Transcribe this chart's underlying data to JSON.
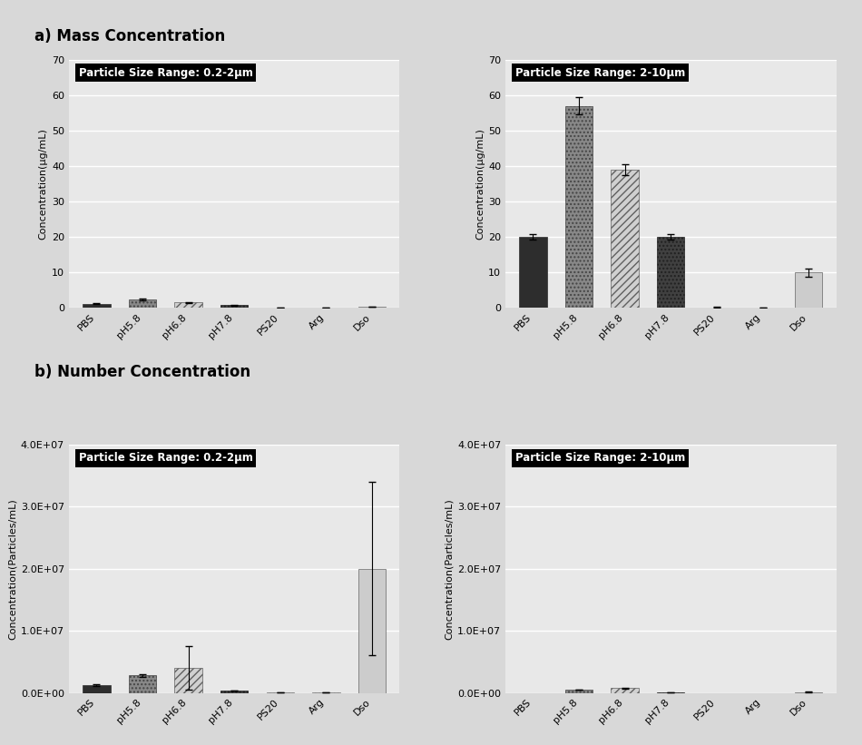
{
  "categories": [
    "PBS",
    "pH5.8",
    "pH6.8",
    "pH7.8",
    "PS20",
    "Arg",
    "Dso"
  ],
  "title_a": "a) Mass Concentration",
  "title_b": "b) Number Concentration",
  "label_a": "Concentration(μg/mL)",
  "label_b": "Concentration(Particles/mL)",
  "panel_labels": [
    "Particle Size Range: 0.2-2μm",
    "Particle Size Range: 2-10μm",
    "Particle Size Range: 0.2-2μm",
    "Particle Size Range: 2-10μm"
  ],
  "mass_small": [
    1.2,
    2.5,
    1.5,
    0.8,
    0.05,
    0.02,
    0.35
  ],
  "mass_small_err": [
    0.15,
    0.25,
    0.2,
    0.1,
    0.02,
    0.01,
    0.05
  ],
  "mass_large": [
    20.0,
    57.0,
    39.0,
    20.0,
    0.2,
    0.15,
    10.0
  ],
  "mass_large_err": [
    0.8,
    2.5,
    1.5,
    0.8,
    0.05,
    0.05,
    1.2
  ],
  "number_small": [
    1200000.0,
    2800000.0,
    4000000.0,
    350000.0,
    50000.0,
    30000.0,
    20000000.0
  ],
  "number_small_err": [
    120000.0,
    250000.0,
    3500000.0,
    50000.0,
    10000.0,
    10000.0,
    14000000.0
  ],
  "number_large": [
    0.0,
    500000.0,
    800000.0,
    100000.0,
    0.0,
    0.0,
    150000.0
  ],
  "number_large_err": [
    0.0,
    50000.0,
    80000.0,
    10000.0,
    0.0,
    0.0,
    20000.0
  ],
  "ylim_mass": [
    0,
    70
  ],
  "ylim_number": [
    0,
    40000000.0
  ],
  "bg_color": "#e8e8e8",
  "fig_bg": "#d8d8d8",
  "bar_styles": [
    {
      "fc": "#2d2d2d",
      "hatch": "",
      "ec": "#2d2d2d",
      "lw": 0.5
    },
    {
      "fc": "#888888",
      "hatch": "....",
      "ec": "#444444",
      "lw": 0.5
    },
    {
      "fc": "#d0d0d0",
      "hatch": "////",
      "ec": "#606060",
      "lw": 0.5
    },
    {
      "fc": "#404040",
      "hatch": "....",
      "ec": "#202020",
      "lw": 0.5
    },
    {
      "fc": "#bbbbbb",
      "hatch": "....",
      "ec": "#777777",
      "lw": 0.5
    },
    {
      "fc": "#bbbbbb",
      "hatch": "....",
      "ec": "#777777",
      "lw": 0.5
    },
    {
      "fc": "#cccccc",
      "hatch": "####",
      "ec": "#666666",
      "lw": 0.5
    }
  ]
}
